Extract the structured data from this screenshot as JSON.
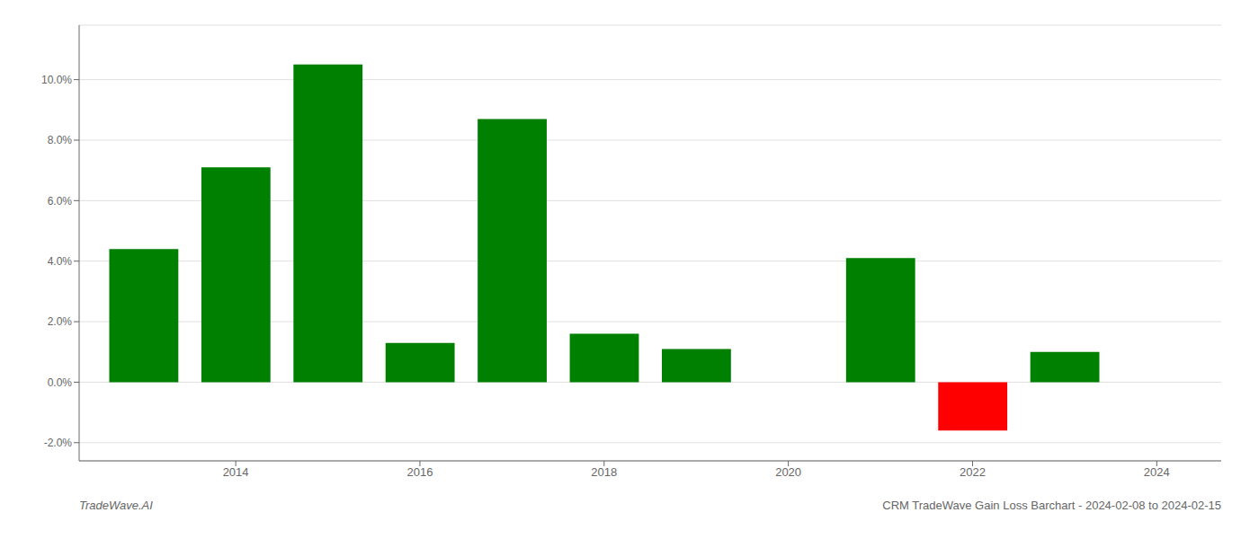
{
  "chart_data": {
    "type": "bar",
    "x": [
      2013,
      2014,
      2015,
      2016,
      2017,
      2018,
      2019,
      2021,
      2022,
      2023
    ],
    "values": [
      0.044,
      0.071,
      0.105,
      0.013,
      0.087,
      0.016,
      0.011,
      0.041,
      -0.016,
      0.01
    ],
    "colors": [
      "#008000",
      "#008000",
      "#008000",
      "#008000",
      "#008000",
      "#008000",
      "#008000",
      "#008000",
      "#ff0000",
      "#008000"
    ],
    "xlim": [
      2012.3,
      2024.7
    ],
    "ylim": [
      -0.026,
      0.118
    ],
    "xticks": [
      2014,
      2016,
      2018,
      2020,
      2022,
      2024
    ],
    "yticks": [
      {
        "value": -0.02,
        "label": "-2.0%"
      },
      {
        "value": 0.0,
        "label": "0.0%"
      },
      {
        "value": 0.02,
        "label": "2.0%"
      },
      {
        "value": 0.04,
        "label": "4.0%"
      },
      {
        "value": 0.06,
        "label": "6.0%"
      },
      {
        "value": 0.08,
        "label": "8.0%"
      },
      {
        "value": 0.1,
        "label": "10.0%"
      }
    ],
    "grid": true,
    "annotations": [
      "TradeWave.AI",
      "CRM TradeWave Gain Loss Barchart - 2024-02-08 to 2024-02-15"
    ]
  }
}
